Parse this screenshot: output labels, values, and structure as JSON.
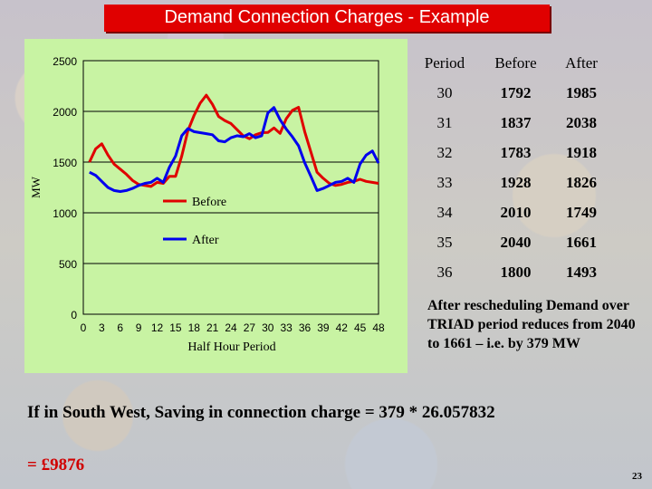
{
  "title": "Demand Connection Charges - Example",
  "chart_data": {
    "type": "line",
    "title": "",
    "xlabel": "Half Hour Period",
    "ylabel": "MW",
    "xlim": [
      0,
      48
    ],
    "ylim": [
      0,
      2500
    ],
    "x_ticks": [
      "0",
      "3",
      "6",
      "9",
      "12",
      "15",
      "18",
      "21",
      "24",
      "27",
      "30",
      "33",
      "36",
      "39",
      "42",
      "45",
      "48"
    ],
    "y_ticks": [
      "0",
      "500",
      "1000",
      "1500",
      "2000",
      "2500"
    ],
    "grid": true,
    "legend_placement": "inside-left",
    "x": [
      1,
      2,
      3,
      4,
      5,
      6,
      7,
      8,
      9,
      10,
      11,
      12,
      13,
      14,
      15,
      16,
      17,
      18,
      19,
      20,
      21,
      22,
      23,
      24,
      25,
      26,
      27,
      28,
      29,
      30,
      31,
      32,
      33,
      34,
      35,
      36,
      37,
      38,
      39,
      40,
      41,
      42,
      43,
      44,
      45,
      46,
      47,
      48
    ],
    "series": [
      {
        "name": "Before",
        "color": "#e00000",
        "values": [
          1500,
          1630,
          1680,
          1570,
          1480,
          1430,
          1380,
          1320,
          1280,
          1270,
          1260,
          1300,
          1290,
          1360,
          1360,
          1560,
          1810,
          1960,
          2080,
          2160,
          2070,
          1950,
          1910,
          1880,
          1820,
          1760,
          1730,
          1770,
          1790,
          1792,
          1837,
          1783,
          1928,
          2010,
          2040,
          1800,
          1600,
          1400,
          1340,
          1290,
          1270,
          1280,
          1300,
          1310,
          1330,
          1310,
          1300,
          1290
        ]
      },
      {
        "name": "After",
        "color": "#0000ee",
        "values": [
          1400,
          1370,
          1310,
          1250,
          1220,
          1210,
          1220,
          1240,
          1270,
          1290,
          1300,
          1340,
          1300,
          1450,
          1560,
          1760,
          1830,
          1800,
          1790,
          1780,
          1770,
          1710,
          1700,
          1740,
          1760,
          1750,
          1780,
          1740,
          1760,
          1985,
          2038,
          1918,
          1826,
          1749,
          1661,
          1493,
          1360,
          1220,
          1240,
          1270,
          1300,
          1310,
          1340,
          1300,
          1480,
          1570,
          1610,
          1490
        ]
      }
    ]
  },
  "table": {
    "headers": [
      "Period",
      "Before",
      "After"
    ],
    "rows": [
      [
        "30",
        "1792",
        "1985"
      ],
      [
        "31",
        "1837",
        "2038"
      ],
      [
        "32",
        "1783",
        "1918"
      ],
      [
        "33",
        "1928",
        "1826"
      ],
      [
        "34",
        "2010",
        "1749"
      ],
      [
        "35",
        "2040",
        "1661"
      ],
      [
        "36",
        "1800",
        "1493"
      ]
    ]
  },
  "note": "After rescheduling Demand over TRIAD period reduces from 2040 to 1661 – i.e. by 379 MW",
  "saving_text": "If in South West,  Saving in connection charge = 379 * 26.057832",
  "total": "= £9876",
  "page_number": "23"
}
